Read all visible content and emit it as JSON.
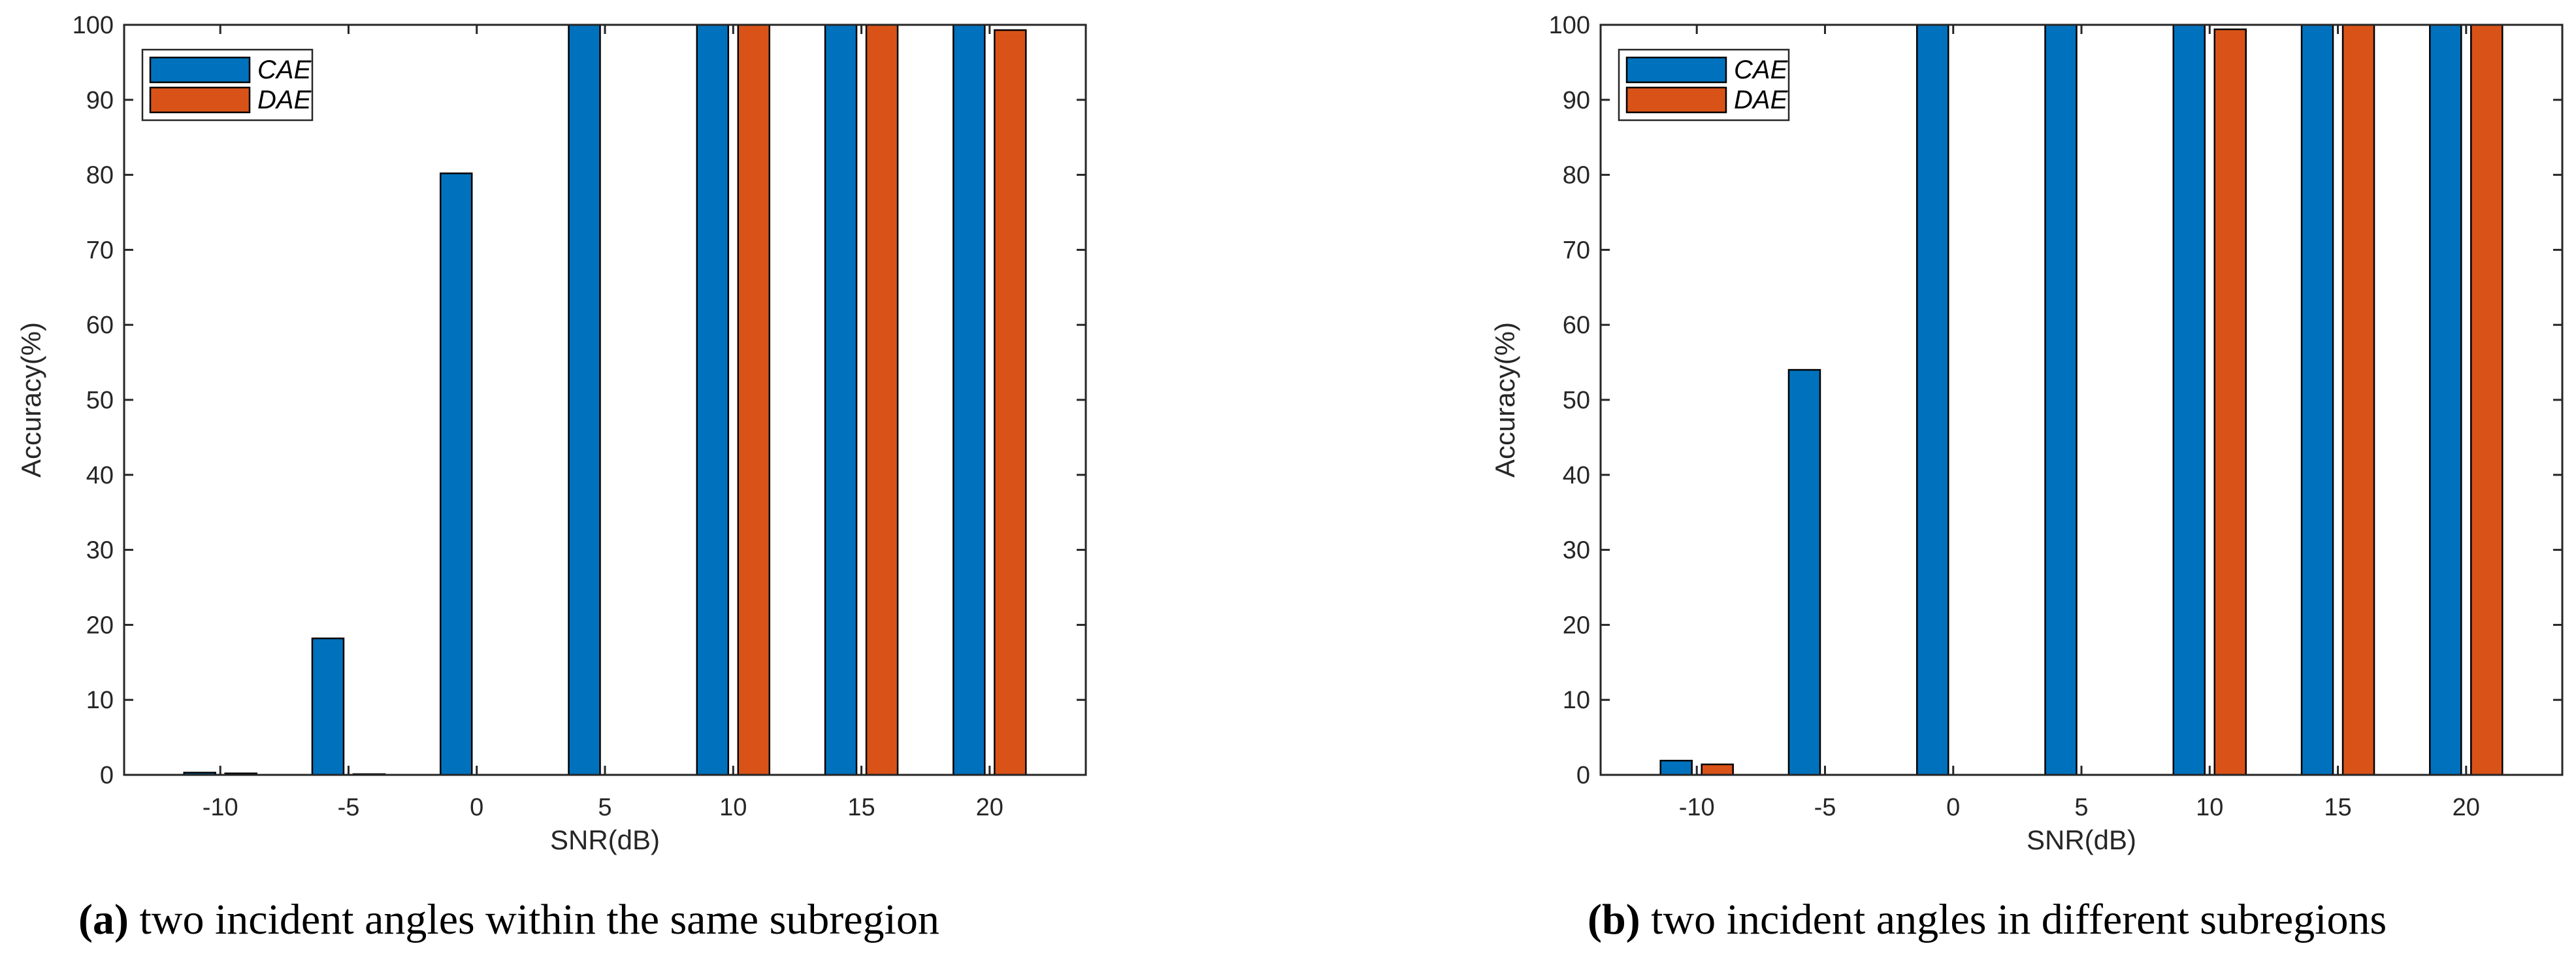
{
  "chart_data": [
    {
      "type": "bar",
      "panel": "a",
      "caption_letter": "(a)",
      "caption_text": "two incident angles within the same subregion",
      "xlabel": "SNR(dB)",
      "ylabel": "Accuracy(%)",
      "categories": [
        "-10",
        "-5",
        "0",
        "5",
        "10",
        "15",
        "20"
      ],
      "ylim": [
        0,
        100
      ],
      "yticks": [
        "0",
        "10",
        "20",
        "30",
        "40",
        "50",
        "60",
        "70",
        "80",
        "90",
        "100"
      ],
      "legend_position": "top-left",
      "series": [
        {
          "name": "CAE",
          "color": "#0072BD",
          "values": [
            0.3,
            18.2,
            80.2,
            100,
            100,
            100,
            100
          ]
        },
        {
          "name": "DAE",
          "color": "#D95319",
          "values": [
            0.2,
            0.1,
            0,
            0,
            100,
            100,
            99.3
          ]
        }
      ]
    },
    {
      "type": "bar",
      "panel": "b",
      "caption_letter": "(b)",
      "caption_text": "two incident angles in different subregions",
      "xlabel": "SNR(dB)",
      "ylabel": "Accuracy(%)",
      "categories": [
        "-10",
        "-5",
        "0",
        "5",
        "10",
        "15",
        "20"
      ],
      "ylim": [
        0,
        100
      ],
      "yticks": [
        "0",
        "10",
        "20",
        "30",
        "40",
        "50",
        "60",
        "70",
        "80",
        "90",
        "100"
      ],
      "legend_position": "top-left",
      "series": [
        {
          "name": "CAE",
          "color": "#0072BD",
          "values": [
            1.9,
            54,
            100,
            100,
            100,
            100,
            100
          ]
        },
        {
          "name": "DAE",
          "color": "#D95319",
          "values": [
            1.4,
            0,
            0,
            0,
            99.4,
            100,
            100
          ]
        }
      ]
    }
  ]
}
